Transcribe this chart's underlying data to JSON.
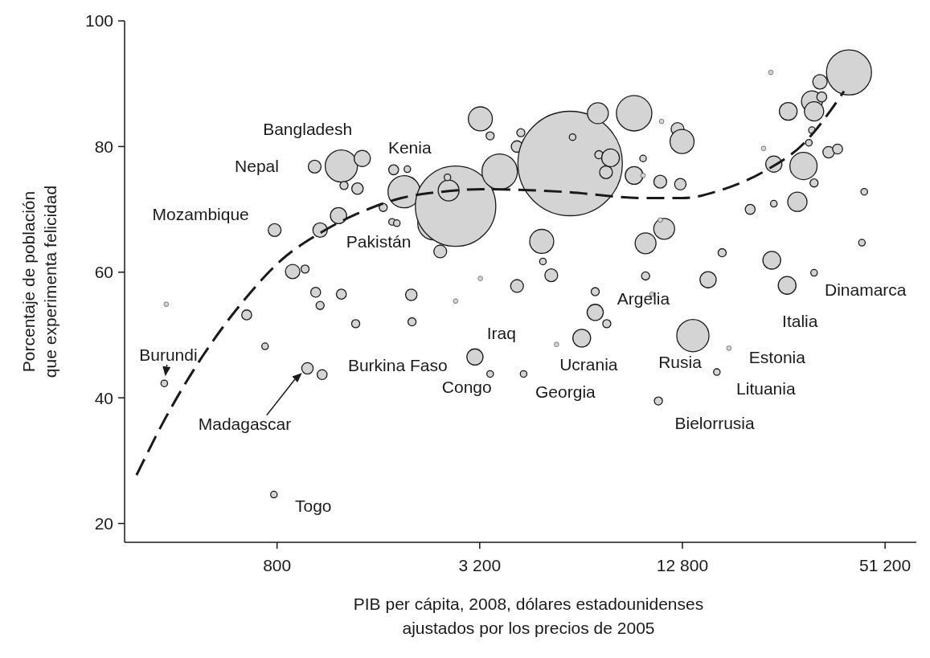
{
  "chart_data": {
    "type": "bubble",
    "xlabel": "PIB per cápita, 2008, dólares estadounidenses ajustados por los precios de 2005",
    "ylabel": "Porcentaje de población que experimenta felicidad",
    "log": "x",
    "xlim": [
      282,
      63400
    ],
    "ylim": [
      17,
      100
    ],
    "xticks": [
      {
        "value": 800,
        "label": "800"
      },
      {
        "value": 3200,
        "label": "3 200"
      },
      {
        "value": 12800,
        "label": "12 800"
      },
      {
        "value": 51200,
        "label": "51 200"
      }
    ],
    "yticks": [
      20,
      40,
      60,
      80,
      100
    ],
    "grid": false,
    "series": [
      {
        "color": "#d4d4d4",
        "x": [
          370,
          375,
          787,
          650,
          737,
          783,
          985,
          1089,
          890,
          969,
          1042,
          1074,
          1074,
          1035,
          1242,
          1218,
          1265,
          1242,
          1433,
          1387,
          1370,
          1654,
          1776,
          1951,
          1757,
          1815,
          1908,
          2004,
          2014,
          2339,
          2443,
          2713,
          2587,
          2567,
          2713,
          3214,
          3436,
          3214,
          3097,
          3436,
          3668,
          4130,
          4130,
          4240,
          4320,
          4890,
          4930,
          5220,
          5940,
          6040,
          5410,
          6430,
          7180,
          7230,
          7590,
          7830,
          7050,
          7050,
          7630,
          9200,
          9200,
          9780,
          9780,
          9950,
          9950,
          11100,
          11300,
          11000,
          11000,
          10390,
          12380,
          12770,
          12620,
          10860,
          13750,
          15260,
          16200,
          16800,
          17600,
          20350,
          23590,
          23920,
          23430,
          23920,
          26200,
          26400,
          22300,
          28100,
          29300,
          31040,
          31500,
          30400,
          31040,
          32800,
          33200,
          31500,
          31500,
          34800,
          37000,
          40000,
          44400,
          43700
        ],
        "values": [
          42.3,
          54.9,
          66.7,
          53.2,
          48.2,
          24.6,
          44.7,
          43.7,
          60.1,
          60.5,
          56.8,
          54.7,
          66.7,
          76.8,
          76.9,
          69,
          73.8,
          56.5,
          78.1,
          73.3,
          51.8,
          70.3,
          76.3,
          76.4,
          68,
          67.8,
          72.8,
          56.4,
          52.1,
          67.7,
          63.3,
          70.5,
          73,
          75.1,
          55.4,
          84.4,
          81.7,
          59,
          46.5,
          43.8,
          76,
          57.8,
          80,
          82.2,
          43.8,
          64.9,
          61.7,
          59.5,
          77.3,
          81.5,
          48.5,
          49.5,
          85.3,
          78.7,
          75.9,
          78.2,
          53.6,
          56.9,
          51.8,
          85.3,
          75.4,
          75.4,
          78.1,
          64.6,
          59.4,
          84,
          66.9,
          74.4,
          68.3,
          56.5,
          82.8,
          80.8,
          74,
          39.5,
          49.9,
          58.8,
          44.1,
          63.1,
          47.9,
          70,
          61.9,
          77.2,
          91.8,
          70.9,
          57.9,
          85.6,
          79.7,
          71.2,
          76.9,
          87.2,
          85.6,
          80.6,
          82.6,
          90.3,
          87.9,
          74.2,
          59.9,
          79.1,
          79.6,
          91.8,
          72.8,
          64.7
        ],
        "sizes": [
          0.004,
          0.002,
          0.015,
          0.009,
          0.004,
          0.004,
          0.012,
          0.009,
          0.019,
          0.006,
          0.009,
          0.006,
          0.019,
          0.015,
          0.095,
          0.024,
          0.006,
          0.009,
          0.024,
          0.012,
          0.006,
          0.006,
          0.009,
          0.004,
          0.004,
          0.004,
          0.095,
          0.012,
          0.006,
          0.095,
          0.015,
          0.592,
          0.04,
          0.004,
          0.002,
          0.053,
          0.006,
          0.002,
          0.024,
          0.004,
          0.115,
          0.015,
          0.012,
          0.006,
          0.004,
          0.053,
          0.004,
          0.015,
          1,
          0.004,
          0.002,
          0.029,
          0.04,
          0.006,
          0.015,
          0.029,
          0.024,
          0.006,
          0.006,
          0.115,
          0.029,
          0.002,
          0.004,
          0.04,
          0.006,
          0.002,
          0.04,
          0.015,
          0.002,
          0.002,
          0.015,
          0.053,
          0.012,
          0.006,
          0.095,
          0.024,
          0.004,
          0.006,
          0.002,
          0.009,
          0.029,
          0.024,
          0.002,
          0.004,
          0.029,
          0.029,
          0.002,
          0.034,
          0.068,
          0.04,
          0.034,
          0.004,
          0.004,
          0.019,
          0.009,
          0.006,
          0.004,
          0.012,
          0.009,
          0.186,
          0.004,
          0.004
        ]
      },
      {
        "type": "line",
        "color": "#1a1a1a",
        "line_style": "dashed",
        "x": [
          306,
          374,
          475,
          624,
          823,
          1087,
          1425,
          1871,
          2470,
          3250,
          5640,
          9780,
          12830,
          16940,
          22310,
          29370,
          38660
        ],
        "values": [
          27.7,
          36.9,
          46.2,
          54.9,
          61.9,
          66.4,
          69.6,
          71.8,
          72.8,
          73.2,
          72.8,
          71.8,
          71.8,
          73.2,
          76,
          80.5,
          88.8
        ]
      }
    ],
    "annotations": [
      {
        "text": "Bangladesh",
        "x": 1242,
        "y": 76.9
      },
      {
        "text": "Kenia",
        "x": 1908,
        "y": 72.8
      },
      {
        "text": "Nepal",
        "x": 1035,
        "y": 76.8
      },
      {
        "text": "Mozambique",
        "x": 787,
        "y": 66.7
      },
      {
        "text": "Pakistán",
        "x": 1218,
        "y": 69
      },
      {
        "text": "Burundi",
        "x": 370,
        "y": 42.3
      },
      {
        "text": "Madagascar",
        "x": 985,
        "y": 44.7
      },
      {
        "text": "Togo",
        "x": 783,
        "y": 24.6
      },
      {
        "text": "Burkina Faso",
        "x": 1089,
        "y": 43.7
      },
      {
        "text": "Iraq",
        "x": 3097,
        "y": 46.5
      },
      {
        "text": "Congo",
        "x": 3436,
        "y": 43.8
      },
      {
        "text": "Ucrania",
        "x": 5410,
        "y": 48.5
      },
      {
        "text": "Georgia",
        "x": 4320,
        "y": 43.8
      },
      {
        "text": "Argelia",
        "x": 7050,
        "y": 53.6
      },
      {
        "text": "Rusia",
        "x": 13750,
        "y": 49.9
      },
      {
        "text": "Estonia",
        "x": 17600,
        "y": 47.9
      },
      {
        "text": "Lituania",
        "x": 16200,
        "y": 44.1
      },
      {
        "text": "Bielorrusia",
        "x": 10860,
        "y": 39.5
      },
      {
        "text": "Italia",
        "x": 26200,
        "y": 57.9
      },
      {
        "text": "Dinamarca",
        "x": 31500,
        "y": 59.9
      }
    ]
  }
}
